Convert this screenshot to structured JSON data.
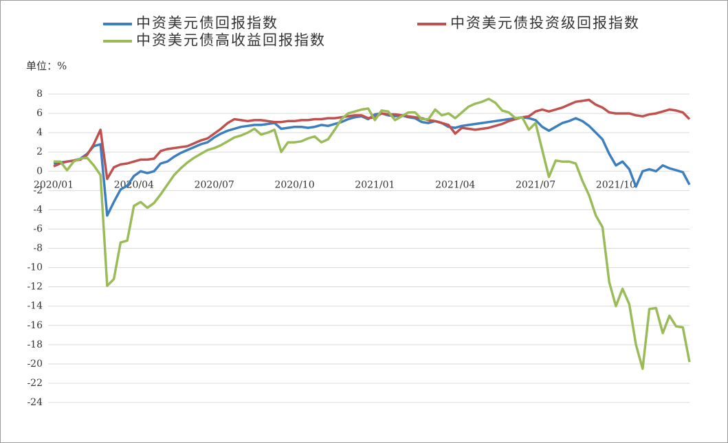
{
  "chart_data": {
    "type": "line",
    "unit_label": "单位：%",
    "categories": [
      "2020/01",
      null,
      null,
      null,
      null,
      null,
      null,
      null,
      null,
      null,
      null,
      null,
      "2020/04",
      null,
      null,
      null,
      null,
      null,
      null,
      null,
      null,
      null,
      null,
      null,
      "2020/07",
      null,
      null,
      null,
      null,
      null,
      null,
      null,
      null,
      null,
      null,
      null,
      "2020/10",
      null,
      null,
      null,
      null,
      null,
      null,
      null,
      null,
      null,
      null,
      null,
      "2021/01",
      null,
      null,
      null,
      null,
      null,
      null,
      null,
      null,
      null,
      null,
      null,
      "2021/04",
      null,
      null,
      null,
      null,
      null,
      null,
      null,
      null,
      null,
      null,
      null,
      "2021/07",
      null,
      null,
      null,
      null,
      null,
      null,
      null,
      null,
      null,
      null,
      null,
      "2021/10",
      null,
      null,
      null,
      null,
      null,
      null,
      null,
      null,
      null,
      null,
      null
    ],
    "ylim": [
      -24,
      8
    ],
    "yticks": [
      8,
      6,
      4,
      2,
      0,
      -2,
      -4,
      -6,
      -8,
      -10,
      -12,
      -14,
      -16,
      -18,
      -20,
      -22,
      -24
    ],
    "grid": true,
    "series": [
      {
        "name": "中资美元债回报指数",
        "color": "#3d7ebf",
        "values": [
          0.8,
          0.9,
          1.0,
          1.1,
          1.3,
          1.8,
          2.6,
          2.8,
          -4.6,
          -3.2,
          -1.9,
          -1.5,
          -0.5,
          0,
          -0.2,
          0,
          0.8,
          1.0,
          1.5,
          1.9,
          2.2,
          2.5,
          2.8,
          3.0,
          3.5,
          3.9,
          4.2,
          4.4,
          4.6,
          4.7,
          4.8,
          4.8,
          4.9,
          5.0,
          4.4,
          4.5,
          4.6,
          4.6,
          4.5,
          4.6,
          4.8,
          4.7,
          4.9,
          5.1,
          5.4,
          5.6,
          5.7,
          5.4,
          5.9,
          6.0,
          5.8,
          5.7,
          5.8,
          5.6,
          5.5,
          5.1,
          5.0,
          5.2,
          5.0,
          4.6,
          4.5,
          4.7,
          4.8,
          4.9,
          5.0,
          5.1,
          5.2,
          5.3,
          5.4,
          5.5,
          5.6,
          5.5,
          5.3,
          4.6,
          4.2,
          4.6,
          5.0,
          5.2,
          5.5,
          5.2,
          4.7,
          4.0,
          3.3,
          1.8,
          0.6,
          1.0,
          0.2,
          -1.6,
          0,
          0.2,
          0,
          0.6,
          0.3,
          0.1,
          -0.1,
          -1.4
        ]
      },
      {
        "name": "中资美元债投资级回报指数",
        "color": "#c0504d",
        "values": [
          0.5,
          0.8,
          1.0,
          1.1,
          1.2,
          1.7,
          2.8,
          4.3,
          -0.8,
          0.4,
          0.7,
          0.8,
          1.0,
          1.2,
          1.2,
          1.3,
          2.1,
          2.3,
          2.4,
          2.5,
          2.6,
          2.9,
          3.2,
          3.4,
          3.9,
          4.4,
          5.0,
          5.4,
          5.3,
          5.2,
          5.3,
          5.3,
          5.2,
          5.1,
          5.1,
          5.2,
          5.2,
          5.3,
          5.3,
          5.4,
          5.4,
          5.5,
          5.5,
          5.6,
          5.7,
          5.8,
          5.8,
          5.5,
          5.6,
          6.0,
          5.9,
          5.9,
          5.8,
          5.7,
          5.6,
          5.5,
          5.3,
          5.2,
          5.0,
          4.8,
          3.9,
          4.5,
          4.4,
          4.3,
          4.4,
          4.5,
          4.7,
          4.9,
          5.2,
          5.4,
          5.6,
          5.7,
          6.2,
          6.4,
          6.2,
          6.4,
          6.6,
          6.9,
          7.2,
          7.3,
          7.4,
          6.9,
          6.6,
          6.1,
          6.0,
          6.0,
          6.0,
          5.8,
          5.7,
          5.9,
          6.0,
          6.2,
          6.4,
          6.3,
          6.1,
          5.4
        ]
      },
      {
        "name": "中资美元债高收益回报指数",
        "color": "#9bbb59",
        "values": [
          1.0,
          1.0,
          0.1,
          1.0,
          1.3,
          1.4,
          0.6,
          -0.4,
          -11.9,
          -11.2,
          -7.4,
          -7.2,
          -3.6,
          -3.2,
          -3.8,
          -3.3,
          -2.4,
          -1.4,
          -0.4,
          0.3,
          0.9,
          1.4,
          1.8,
          2.2,
          2.4,
          2.7,
          3.1,
          3.5,
          3.7,
          4.0,
          4.4,
          3.8,
          4.0,
          4.3,
          2.0,
          3.0,
          3.0,
          3.1,
          3.4,
          3.6,
          3.0,
          3.3,
          4.3,
          5.4,
          6.0,
          6.2,
          6.4,
          6.5,
          5.3,
          6.3,
          6.2,
          5.3,
          5.7,
          6.1,
          6.1,
          5.4,
          5.4,
          6.4,
          5.8,
          6.0,
          5.5,
          6.1,
          6.7,
          7.0,
          7.2,
          7.5,
          7.1,
          6.3,
          6.1,
          5.5,
          5.6,
          4.3,
          5.0,
          2.2,
          -0.6,
          1.1,
          1.0,
          1.0,
          0.8,
          -1.0,
          -2.5,
          -4.6,
          -5.8,
          -11.5,
          -14.0,
          -12.2,
          -13.8,
          -18.0,
          -20.5,
          -14.3,
          -14.2,
          -16.8,
          -15.0,
          -16.1,
          -16.2,
          -19.8
        ]
      }
    ]
  }
}
